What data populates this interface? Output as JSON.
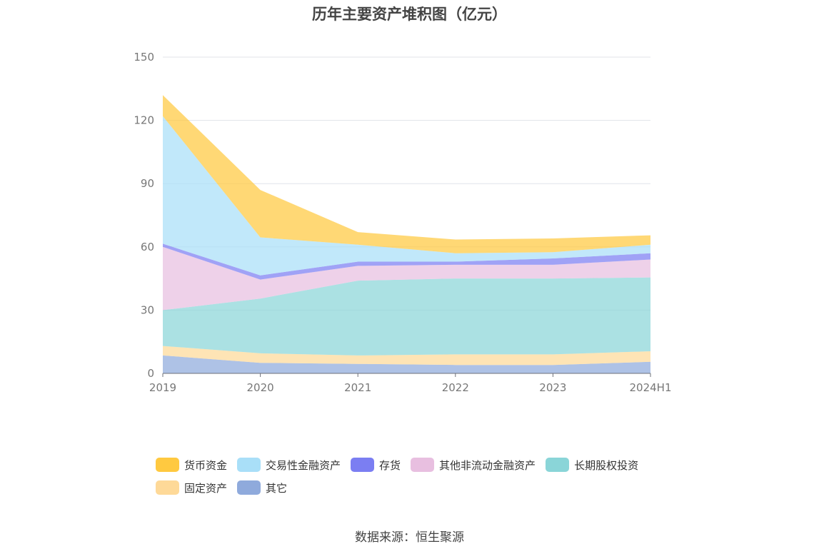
{
  "chart_data": {
    "type": "area",
    "stacked": true,
    "title": "历年主要资产堆积图（亿元）",
    "categories": [
      "2019",
      "2020",
      "2021",
      "2022",
      "2023",
      "2024H1"
    ],
    "ylim": [
      0,
      150
    ],
    "yticks": [
      "0",
      "30",
      "60",
      "90",
      "120",
      "150"
    ],
    "grid": true,
    "legend_position": "bottom",
    "series": [
      {
        "name": "其它",
        "color": "#8faadc",
        "values": [
          8.5,
          5.0,
          4.5,
          4.0,
          4.0,
          5.5
        ]
      },
      {
        "name": "固定资产",
        "color": "#fed998",
        "values": [
          4.5,
          4.5,
          4.0,
          5.0,
          5.0,
          5.0
        ]
      },
      {
        "name": "长期股权投资",
        "color": "#8ad5d8",
        "values": [
          17.0,
          26.0,
          35.5,
          36.0,
          36.0,
          35.0
        ]
      },
      {
        "name": "其他非流动金融资产",
        "color": "#e8bfe0",
        "values": [
          30.0,
          9.0,
          7.0,
          6.5,
          6.5,
          8.5
        ]
      },
      {
        "name": "存货",
        "color": "#7b7ef2",
        "values": [
          1.5,
          2.0,
          2.0,
          1.5,
          3.0,
          3.0
        ]
      },
      {
        "name": "交易性金融资产",
        "color": "#a9dff8",
        "values": [
          60.5,
          18.0,
          8.0,
          4.0,
          3.0,
          4.0
        ]
      },
      {
        "name": "货币资金",
        "color": "#ffc940",
        "values": [
          10.0,
          22.5,
          6.0,
          6.5,
          6.5,
          4.5
        ]
      }
    ],
    "legend_order": [
      "货币资金",
      "交易性金融资产",
      "存货",
      "其他非流动金融资产",
      "长期股权投资",
      "固定资产",
      "其它"
    ]
  },
  "footer": {
    "source": "数据来源：恒生聚源"
  }
}
